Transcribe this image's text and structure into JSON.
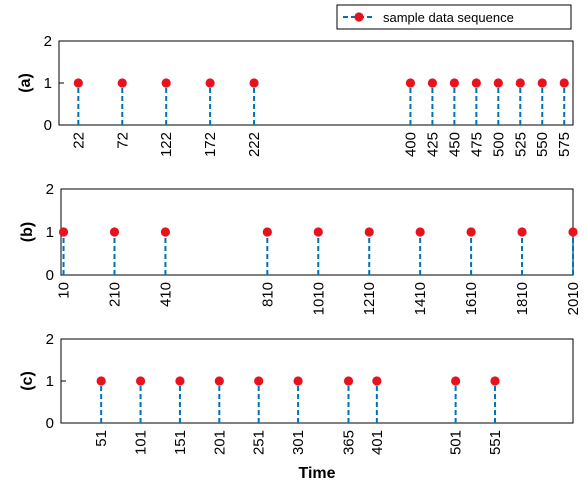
{
  "colors": {
    "stem": "#0072BD",
    "marker": "#E8121C",
    "axis": "#000000",
    "background": "#ffffff"
  },
  "legend": {
    "label": "sample data sequence",
    "placement": "top-right"
  },
  "xlabel": "Time",
  "chart_data": [
    {
      "type": "stem",
      "ylabel": "(a)",
      "ylim": [
        0,
        2
      ],
      "yticks": [
        "0",
        "1",
        "2"
      ],
      "xlim": [
        0,
        585
      ],
      "x": [
        22,
        72,
        122,
        172,
        222,
        400,
        425,
        450,
        475,
        500,
        525,
        550,
        575
      ],
      "xtick_labels": [
        "22",
        "72",
        "122",
        "172",
        "222",
        "400",
        "425",
        "450",
        "475",
        "500",
        "525",
        "550",
        "575"
      ],
      "values": [
        1,
        1,
        1,
        1,
        1,
        1,
        1,
        1,
        1,
        1,
        1,
        1,
        1
      ],
      "series": [
        {
          "name": "sample data sequence"
        }
      ]
    },
    {
      "type": "stem",
      "ylabel": "(b)",
      "ylim": [
        0,
        2
      ],
      "yticks": [
        "0",
        "1",
        "2"
      ],
      "xlim": [
        0,
        2010
      ],
      "x": [
        10,
        210,
        410,
        810,
        1010,
        1210,
        1410,
        1610,
        1810,
        2010
      ],
      "xtick_labels": [
        "10",
        "210",
        "410",
        "810",
        "1010",
        "1210",
        "1410",
        "1610",
        "1810",
        "2010"
      ],
      "values": [
        1,
        1,
        1,
        1,
        1,
        1,
        1,
        1,
        1,
        1
      ]
    },
    {
      "type": "stem",
      "ylabel": "(c)",
      "ylim": [
        0,
        2
      ],
      "yticks": [
        "0",
        "1",
        "2"
      ],
      "xlim": [
        0,
        650
      ],
      "x": [
        51,
        101,
        151,
        201,
        251,
        301,
        365,
        401,
        501,
        551
      ],
      "xtick_labels": [
        "51",
        "101",
        "151",
        "201",
        "251",
        "301",
        "365",
        "401",
        "501",
        "551"
      ],
      "values": [
        1,
        1,
        1,
        1,
        1,
        1,
        1,
        1,
        1,
        1
      ]
    }
  ]
}
